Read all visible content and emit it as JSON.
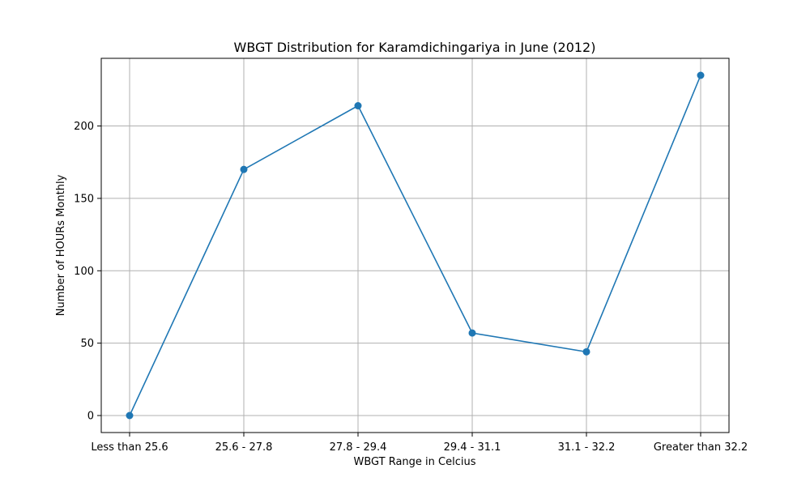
{
  "chart_data": {
    "type": "line",
    "title": "WBGT Distribution for Karamdichingariya in June (2012)",
    "xlabel": "WBGT Range in Celcius",
    "ylabel": "Number of HOURs Monthly",
    "categories": [
      "Less than 25.6",
      "25.6 - 27.8",
      "27.8 - 29.4",
      "29.4 - 31.1",
      "31.1 - 32.2",
      "Greater than 32.2"
    ],
    "series": [
      {
        "values": [
          0,
          170,
          214,
          57,
          44,
          235
        ],
        "color": "#1f77b4",
        "marker": "circle"
      }
    ],
    "yticks": [
      0,
      50,
      100,
      150,
      200
    ],
    "ylim": [
      -11.75,
      246.75
    ],
    "grid": true,
    "legend": "none"
  }
}
